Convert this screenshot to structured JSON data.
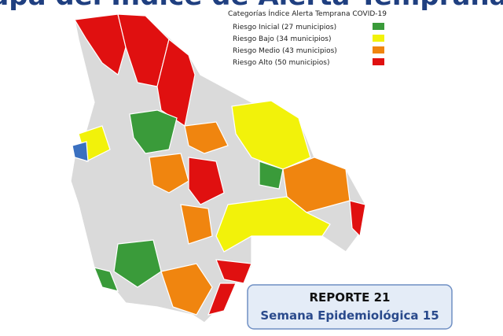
{
  "header": {
    "title": "Mapa del Índice de Alerta Temprana"
  },
  "legend": {
    "title": "Categorías Índice Alerta Temprana COVID-19",
    "items": [
      {
        "label": "Riesgo Inicial (27 municipios)",
        "color": "#3a9b3a"
      },
      {
        "label": "Riesgo Bajo (34 municipios)",
        "color": "#f2f20a"
      },
      {
        "label": "Riesgo Medio (43 municipios)",
        "color": "#f0850f"
      },
      {
        "label": "Riesgo Alto (50 municipios)",
        "color": "#e01010"
      }
    ]
  },
  "report": {
    "title": "REPORTE 21",
    "subtitle": "Semana Epidemiológica 15"
  }
}
